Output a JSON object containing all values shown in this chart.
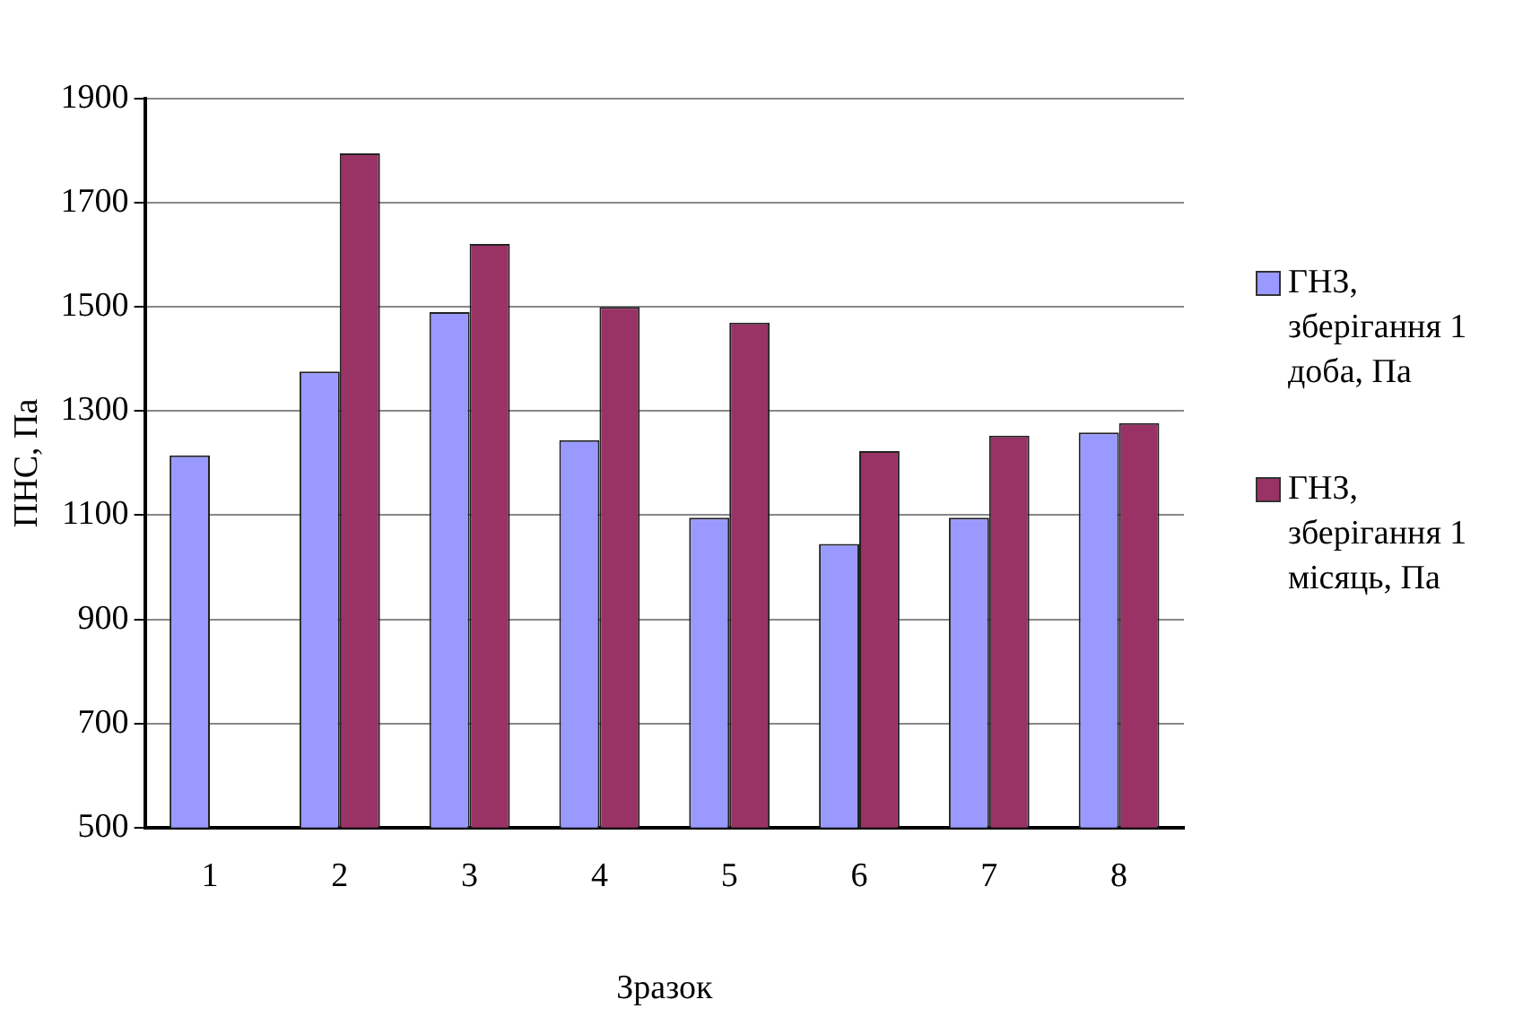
{
  "chart_data": {
    "type": "bar",
    "xlabel": "Зразок",
    "ylabel": "ПНС, Па",
    "categories": [
      "1",
      "2",
      "3",
      "4",
      "5",
      "6",
      "7",
      "8"
    ],
    "series": [
      {
        "name": "ГНЗ, зберігання 1 доба, Па",
        "color": "#9999ff",
        "values": [
          1215,
          1376,
          1490,
          1244,
          1095,
          1045,
          1095,
          1259
        ]
      },
      {
        "name": "ГНЗ, зберігання 1 місяць, Па",
        "color": "#993366",
        "values": [
          null,
          1795,
          1621,
          1500,
          1470,
          1223,
          1253,
          1277
        ]
      }
    ],
    "ylim": [
      500,
      1900
    ],
    "yticks": [
      500,
      700,
      900,
      1100,
      1300,
      1500,
      1700,
      1900
    ],
    "grid": "y",
    "legend": "right"
  }
}
